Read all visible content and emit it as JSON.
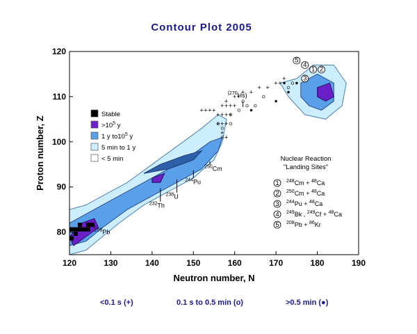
{
  "title": "Contour Plot 2005",
  "chart_data": {
    "type": "contour",
    "xlabel": "Neutron number,  N",
    "ylabel": "Proton number,  Z",
    "xlim": [
      120,
      190
    ],
    "ylim": [
      75,
      120
    ],
    "xticks": [
      120,
      130,
      140,
      150,
      160,
      170,
      180,
      190
    ],
    "yticks": [
      80,
      90,
      100,
      110,
      120
    ],
    "legend": {
      "placement": "left",
      "entries": [
        {
          "label": "Stable",
          "color": "#000000"
        },
        {
          "label": ">10",
          "sup": "5",
          "unit": " y",
          "color": "#6a1fc8"
        },
        {
          "label": "1 y to10",
          "sup": "5",
          "unit": " y",
          "color": "#5aa0e8"
        },
        {
          "label": "5 min to 1 y",
          "color": "#cceeff"
        },
        {
          "label": "< 5 min",
          "color": "#ffffff"
        }
      ]
    },
    "nuclide_labels": [
      {
        "sup": "208",
        "sym": "Pb",
        "n": 126,
        "z": 82
      },
      {
        "sup": "232",
        "sym": "Th",
        "n": 142,
        "z": 90
      },
      {
        "sup": "238",
        "sym": "U",
        "n": 146,
        "z": 92
      },
      {
        "sup": "244",
        "sym": "Pu",
        "n": 150,
        "z": 94
      },
      {
        "sup": "250",
        "sym": "Cm",
        "n": 154,
        "z": 96
      },
      {
        "sup": "(270",
        "sym": "Hs)",
        "n": 162,
        "z": 108
      }
    ],
    "reactions_title": [
      "Nuclear Reaction",
      "\"Landing Sites\""
    ],
    "reactions": [
      {
        "num": "1",
        "text": [
          [
            "248",
            "Cm"
          ],
          [
            "+"
          ],
          [
            "48",
            "Ca"
          ]
        ],
        "n": 179,
        "z": 116
      },
      {
        "num": "2",
        "text": [
          [
            "250",
            "Cm"
          ],
          [
            "+"
          ],
          [
            "48",
            "Ca"
          ]
        ],
        "n": 181,
        "z": 116
      },
      {
        "num": "3",
        "text": [
          [
            "244",
            "Pu"
          ],
          [
            "+"
          ],
          [
            "48",
            "Ca"
          ]
        ],
        "n": 177,
        "z": 114
      },
      {
        "num": "4",
        "text": [
          [
            "249",
            "Bk"
          ],
          [
            ","
          ],
          [
            "249",
            "Cf"
          ],
          [
            "+"
          ],
          [
            "48",
            "Ca"
          ]
        ],
        "n": 177,
        "z": 117
      },
      {
        "num": "5",
        "text": [
          [
            "208",
            "Pb"
          ],
          [
            "+"
          ],
          [
            "86",
            "Kr"
          ]
        ],
        "n": 175,
        "z": 118
      }
    ],
    "markers": {
      "plus": [
        [
          156,
          104
        ],
        [
          157,
          104
        ],
        [
          158,
          104
        ],
        [
          154,
          107
        ],
        [
          155,
          107
        ],
        [
          156,
          106
        ],
        [
          157,
          106
        ],
        [
          158,
          106
        ],
        [
          159,
          106
        ],
        [
          157,
          108
        ],
        [
          158,
          108
        ],
        [
          159,
          108
        ],
        [
          160,
          108
        ],
        [
          158,
          109
        ],
        [
          160,
          110
        ],
        [
          161,
          110
        ],
        [
          162,
          111
        ],
        [
          164,
          111
        ],
        [
          166,
          112
        ],
        [
          168,
          112
        ],
        [
          170,
          113
        ],
        [
          171,
          113
        ],
        [
          172,
          114
        ],
        [
          157,
          102
        ],
        [
          158,
          101
        ],
        [
          153,
          107
        ],
        [
          152,
          107
        ]
      ],
      "open": [
        [
          156,
          104
        ],
        [
          157,
          103
        ],
        [
          159,
          106
        ],
        [
          161,
          107
        ],
        [
          163,
          108
        ],
        [
          165,
          108
        ],
        [
          167,
          110
        ],
        [
          162,
          109
        ],
        [
          157,
          101
        ],
        [
          159,
          104
        ],
        [
          173,
          112
        ],
        [
          174,
          113
        ]
      ],
      "filled": [
        [
          170,
          109
        ],
        [
          173,
          111
        ],
        [
          164,
          107
        ],
        [
          172,
          113
        ],
        [
          175,
          113
        ]
      ]
    },
    "footnotes": [
      {
        "label": "<0.1 s (+)"
      },
      {
        "label": "0.1 s to  0.5 min (o)"
      },
      {
        "label": ">0.5 min (●)"
      }
    ]
  }
}
